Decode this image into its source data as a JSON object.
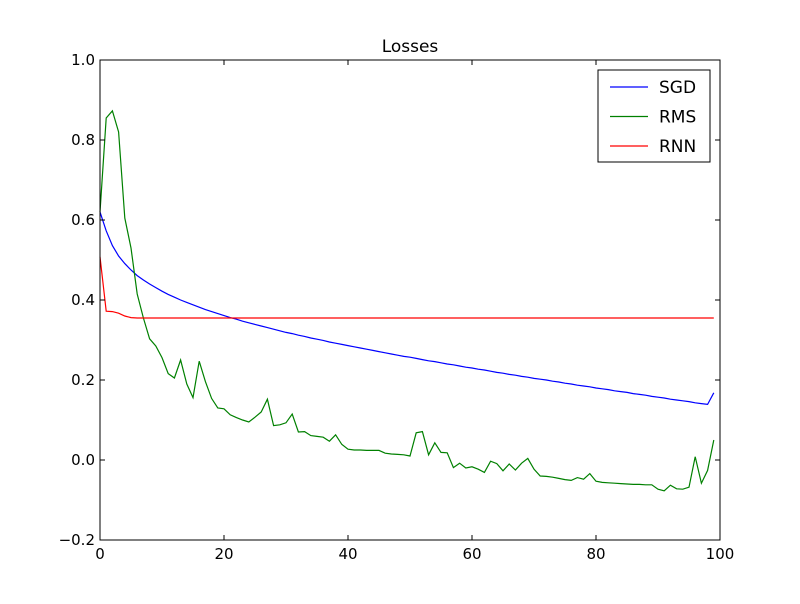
{
  "chart_data": {
    "type": "line",
    "title": "Losses",
    "xlabel": "",
    "ylabel": "",
    "xlim": [
      0,
      100
    ],
    "ylim": [
      -0.2,
      1.0
    ],
    "xticks": [
      0,
      20,
      40,
      60,
      80,
      100
    ],
    "xtick_labels": [
      "0",
      "20",
      "40",
      "60",
      "80",
      "100"
    ],
    "yticks": [
      -0.2,
      0.0,
      0.2,
      0.4,
      0.6,
      0.8,
      1.0
    ],
    "ytick_labels": [
      "−0.2",
      "0.0",
      "0.2",
      "0.4",
      "0.6",
      "0.8",
      "1.0"
    ],
    "grid": false,
    "legend_position": "top-right",
    "series": [
      {
        "name": "SGD",
        "color": "#0000ff",
        "x": [
          0,
          1,
          2,
          3,
          4,
          5,
          6,
          7,
          8,
          9,
          10,
          11,
          12,
          13,
          14,
          15,
          16,
          17,
          18,
          19,
          20,
          21,
          22,
          23,
          24,
          25,
          26,
          27,
          28,
          29,
          30,
          31,
          32,
          33,
          34,
          35,
          36,
          37,
          38,
          39,
          40,
          41,
          42,
          43,
          44,
          45,
          46,
          47,
          48,
          49,
          50,
          51,
          52,
          53,
          54,
          55,
          56,
          57,
          58,
          59,
          60,
          61,
          62,
          63,
          64,
          65,
          66,
          67,
          68,
          69,
          70,
          71,
          72,
          73,
          74,
          75,
          76,
          77,
          78,
          79,
          80,
          81,
          82,
          83,
          84,
          85,
          86,
          87,
          88,
          89,
          90,
          91,
          92,
          93,
          94,
          95,
          96,
          97,
          98,
          99
        ],
        "y": [
          0.62,
          0.573,
          0.536,
          0.51,
          0.491,
          0.475,
          0.461,
          0.45,
          0.44,
          0.431,
          0.422,
          0.414,
          0.407,
          0.4,
          0.394,
          0.388,
          0.382,
          0.376,
          0.371,
          0.366,
          0.361,
          0.356,
          0.352,
          0.347,
          0.343,
          0.339,
          0.335,
          0.331,
          0.327,
          0.323,
          0.319,
          0.316,
          0.312,
          0.309,
          0.305,
          0.302,
          0.299,
          0.295,
          0.292,
          0.289,
          0.286,
          0.283,
          0.28,
          0.277,
          0.274,
          0.271,
          0.268,
          0.265,
          0.262,
          0.259,
          0.257,
          0.254,
          0.251,
          0.248,
          0.246,
          0.243,
          0.24,
          0.238,
          0.235,
          0.232,
          0.23,
          0.227,
          0.225,
          0.222,
          0.219,
          0.217,
          0.214,
          0.212,
          0.209,
          0.207,
          0.204,
          0.202,
          0.2,
          0.197,
          0.195,
          0.192,
          0.19,
          0.187,
          0.185,
          0.183,
          0.18,
          0.178,
          0.176,
          0.173,
          0.171,
          0.169,
          0.166,
          0.164,
          0.162,
          0.159,
          0.157,
          0.155,
          0.152,
          0.15,
          0.148,
          0.146,
          0.143,
          0.141,
          0.139,
          0.168
        ]
      },
      {
        "name": "RMS",
        "color": "#008000",
        "x": [
          0,
          1,
          2,
          3,
          4,
          5,
          6,
          7,
          8,
          9,
          10,
          11,
          12,
          13,
          14,
          15,
          16,
          17,
          18,
          19,
          20,
          21,
          22,
          23,
          24,
          25,
          26,
          27,
          28,
          29,
          30,
          31,
          32,
          33,
          34,
          35,
          36,
          37,
          38,
          39,
          40,
          41,
          42,
          43,
          44,
          45,
          46,
          47,
          48,
          49,
          50,
          51,
          52,
          53,
          54,
          55,
          56,
          57,
          58,
          59,
          60,
          61,
          62,
          63,
          64,
          65,
          66,
          67,
          68,
          69,
          70,
          71,
          72,
          73,
          74,
          75,
          76,
          77,
          78,
          79,
          80,
          81,
          82,
          83,
          84,
          85,
          86,
          87,
          88,
          89,
          90,
          91,
          92,
          93,
          94,
          95,
          96,
          97,
          98,
          99
        ],
        "y": [
          0.62,
          0.855,
          0.873,
          0.82,
          0.605,
          0.53,
          0.415,
          0.355,
          0.303,
          0.285,
          0.256,
          0.216,
          0.205,
          0.25,
          0.19,
          0.156,
          0.247,
          0.196,
          0.154,
          0.13,
          0.128,
          0.113,
          0.106,
          0.1,
          0.095,
          0.107,
          0.12,
          0.152,
          0.086,
          0.088,
          0.093,
          0.115,
          0.07,
          0.071,
          0.061,
          0.059,
          0.057,
          0.047,
          0.063,
          0.039,
          0.027,
          0.025,
          0.025,
          0.024,
          0.024,
          0.024,
          0.017,
          0.015,
          0.014,
          0.013,
          0.01,
          0.068,
          0.071,
          0.013,
          0.043,
          0.019,
          0.018,
          -0.019,
          -0.008,
          -0.02,
          -0.017,
          -0.023,
          -0.031,
          -0.003,
          -0.009,
          -0.027,
          -0.01,
          -0.025,
          -0.008,
          0.004,
          -0.023,
          -0.04,
          -0.041,
          -0.043,
          -0.046,
          -0.049,
          -0.051,
          -0.044,
          -0.048,
          -0.034,
          -0.053,
          -0.056,
          -0.057,
          -0.058,
          -0.059,
          -0.06,
          -0.061,
          -0.061,
          -0.062,
          -0.062,
          -0.073,
          -0.077,
          -0.063,
          -0.072,
          -0.073,
          -0.068,
          0.008,
          -0.058,
          -0.026,
          0.05
        ]
      },
      {
        "name": "RNN",
        "color": "#ff0000",
        "x": [
          0,
          1,
          2,
          3,
          4,
          5,
          6,
          7,
          8,
          9,
          10,
          11,
          12,
          13,
          14,
          15,
          16,
          17,
          18,
          19,
          20,
          21,
          22,
          23,
          24,
          25,
          26,
          27,
          28,
          29,
          30,
          31,
          32,
          33,
          34,
          35,
          36,
          37,
          38,
          39,
          40,
          41,
          42,
          43,
          44,
          45,
          46,
          47,
          48,
          49,
          50,
          51,
          52,
          53,
          54,
          55,
          56,
          57,
          58,
          59,
          60,
          61,
          62,
          63,
          64,
          65,
          66,
          67,
          68,
          69,
          70,
          71,
          72,
          73,
          74,
          75,
          76,
          77,
          78,
          79,
          80,
          81,
          82,
          83,
          84,
          85,
          86,
          87,
          88,
          89,
          90,
          91,
          92,
          93,
          94,
          95,
          96,
          97,
          98,
          99
        ],
        "y": [
          0.508,
          0.372,
          0.371,
          0.367,
          0.36,
          0.356,
          0.355,
          0.355,
          0.355,
          0.355,
          0.355,
          0.355,
          0.355,
          0.355,
          0.355,
          0.355,
          0.355,
          0.355,
          0.355,
          0.355,
          0.355,
          0.355,
          0.355,
          0.355,
          0.355,
          0.355,
          0.355,
          0.355,
          0.355,
          0.355,
          0.355,
          0.355,
          0.355,
          0.355,
          0.355,
          0.355,
          0.355,
          0.355,
          0.355,
          0.355,
          0.355,
          0.355,
          0.355,
          0.355,
          0.355,
          0.355,
          0.355,
          0.355,
          0.355,
          0.355,
          0.355,
          0.355,
          0.355,
          0.355,
          0.355,
          0.355,
          0.355,
          0.355,
          0.355,
          0.355,
          0.355,
          0.355,
          0.355,
          0.355,
          0.355,
          0.355,
          0.355,
          0.355,
          0.355,
          0.355,
          0.355,
          0.355,
          0.355,
          0.355,
          0.355,
          0.355,
          0.355,
          0.355,
          0.355,
          0.355,
          0.355,
          0.355,
          0.355,
          0.355,
          0.355,
          0.355,
          0.355,
          0.355,
          0.355,
          0.355,
          0.355,
          0.355,
          0.355,
          0.355,
          0.355,
          0.355,
          0.355,
          0.355,
          0.355,
          0.355
        ]
      }
    ]
  }
}
